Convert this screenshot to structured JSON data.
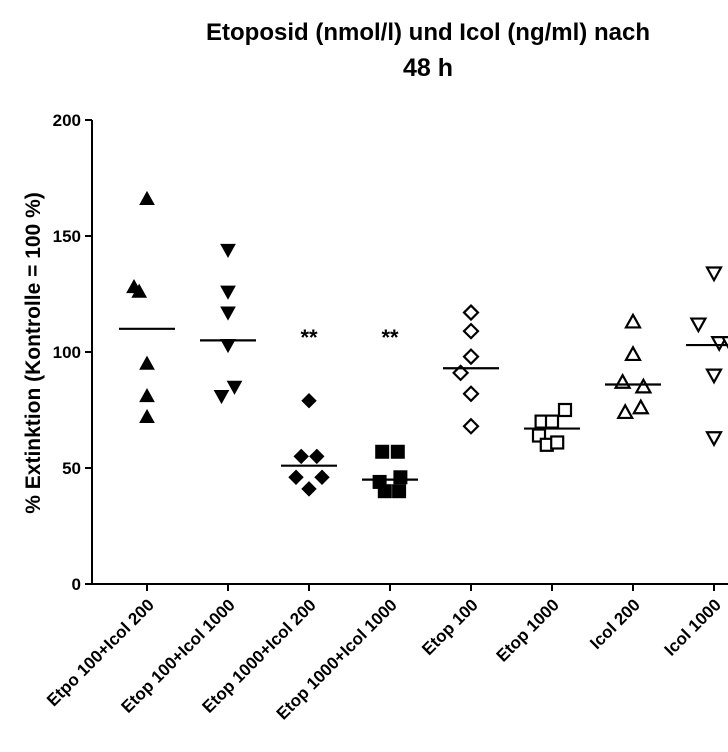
{
  "chart_data": {
    "type": "scatter",
    "title_line1": "Etoposid (nmol/l) und Icol (ng/ml) nach",
    "title_line2": "48 h",
    "xlabel": "",
    "ylabel": "% Extinktion (Kontrolle = 100 %)",
    "ylim": [
      0,
      200
    ],
    "yticks": [
      "0",
      "50",
      "100",
      "150",
      "200"
    ],
    "grid": false,
    "categories": [
      "Etpo 100+Icol 200",
      "Etop 100+Icol 1000",
      "Etop 1000+Icol 200",
      "Etop 1000+Icol 1000",
      "Etop 100",
      "Etop 1000",
      "Icol 200",
      "Icol 1000"
    ],
    "groups": [
      {
        "marker": "triangle-up-filled",
        "points": [
          [
            -0.5,
            128
          ],
          [
            -0.3,
            126
          ],
          [
            0,
            166
          ],
          [
            0,
            95
          ],
          [
            0,
            81
          ],
          [
            0,
            72
          ]
        ],
        "mean": 110
      },
      {
        "marker": "triangle-down-filled",
        "points": [
          [
            0,
            144
          ],
          [
            0,
            126
          ],
          [
            0,
            117
          ],
          [
            0,
            103
          ],
          [
            -0.25,
            81
          ],
          [
            0.25,
            85
          ]
        ],
        "mean": 105
      },
      {
        "marker": "diamond-filled",
        "points": [
          [
            0,
            79
          ],
          [
            -0.3,
            55
          ],
          [
            0.3,
            55
          ],
          [
            -0.5,
            46
          ],
          [
            0.5,
            46
          ],
          [
            0,
            41
          ]
        ],
        "mean": 51
      },
      {
        "marker": "square-filled",
        "points": [
          [
            -0.3,
            57
          ],
          [
            0.3,
            57
          ],
          [
            -0.4,
            44
          ],
          [
            0.4,
            46
          ],
          [
            -0.2,
            40
          ],
          [
            0.35,
            40
          ]
        ],
        "mean": 45
      },
      {
        "marker": "diamond-open",
        "points": [
          [
            0,
            117
          ],
          [
            0,
            109
          ],
          [
            0,
            98
          ],
          [
            -0.4,
            91
          ],
          [
            0,
            82
          ],
          [
            0,
            68
          ]
        ],
        "mean": 93
      },
      {
        "marker": "square-open",
        "points": [
          [
            -0.5,
            64
          ],
          [
            -0.4,
            70
          ],
          [
            0,
            70
          ],
          [
            0.5,
            75
          ],
          [
            -0.2,
            60
          ],
          [
            0.2,
            61
          ]
        ],
        "mean": 67
      },
      {
        "marker": "triangle-up-open",
        "points": [
          [
            0,
            113
          ],
          [
            0,
            99
          ],
          [
            -0.4,
            87
          ],
          [
            0.4,
            85
          ],
          [
            -0.3,
            74
          ],
          [
            0.3,
            76
          ]
        ],
        "mean": 86
      },
      {
        "marker": "triangle-down-open",
        "points": [
          [
            0,
            134
          ],
          [
            -0.6,
            112
          ],
          [
            0.2,
            104
          ],
          [
            0.6,
            104
          ],
          [
            0,
            90
          ],
          [
            0,
            63
          ]
        ],
        "mean": 103
      }
    ],
    "annotations": [
      {
        "category_index": 2,
        "y": 103,
        "text": "**"
      },
      {
        "category_index": 3,
        "y": 103,
        "text": "**"
      }
    ]
  }
}
